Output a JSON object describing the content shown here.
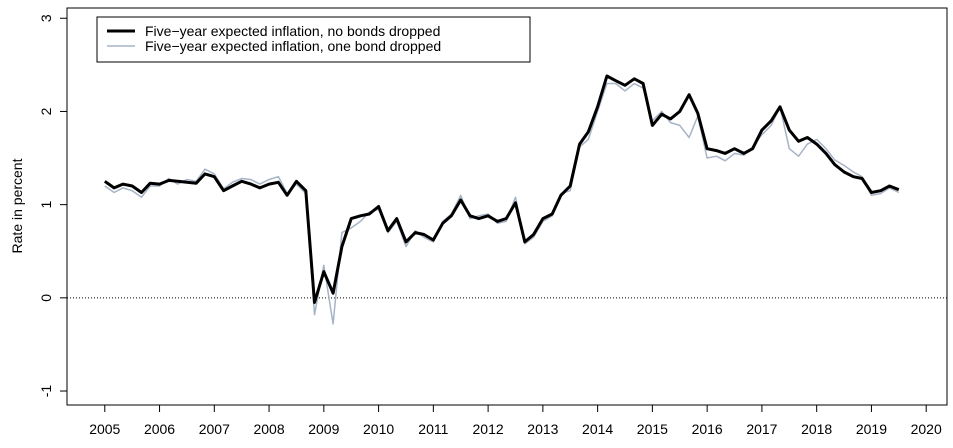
{
  "chart_data": {
    "type": "line",
    "ylabel": "Rate in percent",
    "x": [
      2005,
      2005.17,
      2005.33,
      2005.5,
      2005.67,
      2005.83,
      2006,
      2006.17,
      2006.33,
      2006.5,
      2006.67,
      2006.83,
      2007,
      2007.17,
      2007.33,
      2007.5,
      2007.67,
      2007.83,
      2008,
      2008.17,
      2008.33,
      2008.5,
      2008.67,
      2008.83,
      2009,
      2009.17,
      2009.33,
      2009.5,
      2009.67,
      2009.83,
      2010,
      2010.17,
      2010.33,
      2010.5,
      2010.67,
      2010.83,
      2011,
      2011.17,
      2011.33,
      2011.5,
      2011.67,
      2011.83,
      2012,
      2012.17,
      2012.33,
      2012.5,
      2012.67,
      2012.83,
      2013,
      2013.17,
      2013.33,
      2013.5,
      2013.67,
      2013.83,
      2014,
      2014.17,
      2014.33,
      2014.5,
      2014.67,
      2014.83,
      2015,
      2015.17,
      2015.33,
      2015.5,
      2015.67,
      2015.83,
      2016,
      2016.17,
      2016.33,
      2016.5,
      2016.67,
      2016.83,
      2017,
      2017.17,
      2017.33,
      2017.5,
      2017.67,
      2017.83,
      2018,
      2018.17,
      2018.33,
      2018.5,
      2018.67,
      2018.83,
      2019,
      2019.17,
      2019.33,
      2019.5
    ],
    "series": [
      {
        "name": "Five−year expected inflation, no bonds dropped",
        "color": "#000000",
        "width": 3,
        "values": [
          1.25,
          1.18,
          1.22,
          1.2,
          1.13,
          1.23,
          1.22,
          1.26,
          1.25,
          1.24,
          1.23,
          1.33,
          1.3,
          1.15,
          1.2,
          1.25,
          1.22,
          1.18,
          1.22,
          1.24,
          1.1,
          1.25,
          1.15,
          -0.05,
          0.28,
          0.05,
          0.55,
          0.85,
          0.88,
          0.9,
          0.98,
          0.72,
          0.85,
          0.6,
          0.7,
          0.68,
          0.62,
          0.8,
          0.88,
          1.05,
          0.88,
          0.85,
          0.88,
          0.82,
          0.85,
          1.02,
          0.6,
          0.68,
          0.85,
          0.9,
          1.1,
          1.2,
          1.65,
          1.78,
          2.05,
          2.38,
          2.33,
          2.28,
          2.35,
          2.3,
          1.85,
          1.97,
          1.92,
          2.0,
          2.18,
          1.98,
          1.6,
          1.58,
          1.55,
          1.6,
          1.55,
          1.6,
          1.8,
          1.9,
          2.05,
          1.8,
          1.68,
          1.72,
          1.65,
          1.55,
          1.43,
          1.35,
          1.3,
          1.28,
          1.13,
          1.15,
          1.2,
          1.16
        ]
      },
      {
        "name": "Five−year expected inflation, one bond dropped",
        "color": "#a7b3c6",
        "width": 1.5,
        "values": [
          1.2,
          1.13,
          1.18,
          1.15,
          1.08,
          1.2,
          1.2,
          1.28,
          1.22,
          1.27,
          1.25,
          1.38,
          1.33,
          1.17,
          1.24,
          1.28,
          1.27,
          1.22,
          1.27,
          1.3,
          1.12,
          1.22,
          1.12,
          -0.18,
          0.35,
          -0.28,
          0.7,
          0.75,
          0.82,
          0.92,
          0.95,
          0.7,
          0.82,
          0.55,
          0.72,
          0.65,
          0.6,
          0.82,
          0.9,
          1.1,
          0.85,
          0.88,
          0.9,
          0.8,
          0.82,
          1.08,
          0.58,
          0.65,
          0.82,
          0.88,
          1.12,
          1.15,
          1.62,
          1.7,
          2.0,
          2.3,
          2.3,
          2.22,
          2.3,
          2.25,
          1.9,
          2.0,
          1.88,
          1.85,
          1.72,
          1.95,
          1.5,
          1.52,
          1.47,
          1.55,
          1.53,
          1.62,
          1.75,
          1.85,
          2.05,
          1.6,
          1.52,
          1.65,
          1.7,
          1.6,
          1.48,
          1.42,
          1.35,
          1.3,
          1.1,
          1.12,
          1.18,
          1.13
        ]
      }
    ],
    "xlim": [
      2004.31,
      2020.38
    ],
    "ylim": [
      -1.15,
      3.11
    ],
    "xticks": [
      2005,
      2006,
      2007,
      2008,
      2009,
      2010,
      2011,
      2012,
      2013,
      2014,
      2015,
      2016,
      2017,
      2018,
      2019,
      2020
    ],
    "yticks": [
      -1,
      0,
      1,
      2,
      3
    ],
    "reference_line": 0,
    "legend": "top-left"
  }
}
